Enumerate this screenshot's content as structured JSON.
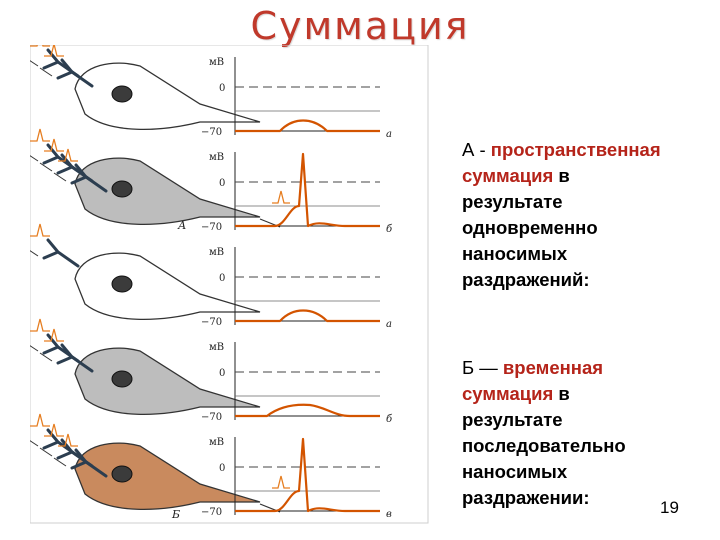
{
  "slide": {
    "title": "Суммация",
    "page_number": "19"
  },
  "block_a": {
    "lead": "А - ",
    "highlight_1": "пространственная",
    "highlight_2": "суммация",
    "rest_1": " в",
    "rest_lines": [
      "результате",
      "одновременно",
      "наносимых",
      "раздражений:"
    ]
  },
  "block_b": {
    "lead": "Б — ",
    "highlight_1": "временная",
    "highlight_2": "суммация",
    "rest_1": " в",
    "rest_lines": [
      "результате",
      "последовательно",
      "наносимых",
      "раздражении:"
    ]
  },
  "figure": {
    "axis_unit": "мВ",
    "tick_zero": "0",
    "tick_rest": "−70",
    "group_labels": [
      "А",
      "Б"
    ],
    "colors": {
      "trace": "#d35400",
      "cell_fill_plain": "#ffffff",
      "cell_fill_gray": "#bdbdbd",
      "cell_fill_brown": "#c98a5e",
      "stim": "#e67e22"
    },
    "panels": [
      {
        "letter": "а",
        "peak": "subthreshold",
        "cell": "plain",
        "inputs": 2
      },
      {
        "letter": "б",
        "peak": "spike",
        "cell": "gray",
        "inputs": 3
      },
      {
        "letter": "а",
        "peak": "subthreshold",
        "cell": "plain",
        "inputs": 1
      },
      {
        "letter": "б",
        "peak": "subthreshold_wide",
        "cell": "gray",
        "inputs": 2
      },
      {
        "letter": "в",
        "peak": "spike",
        "cell": "brown",
        "inputs": 3
      }
    ]
  }
}
